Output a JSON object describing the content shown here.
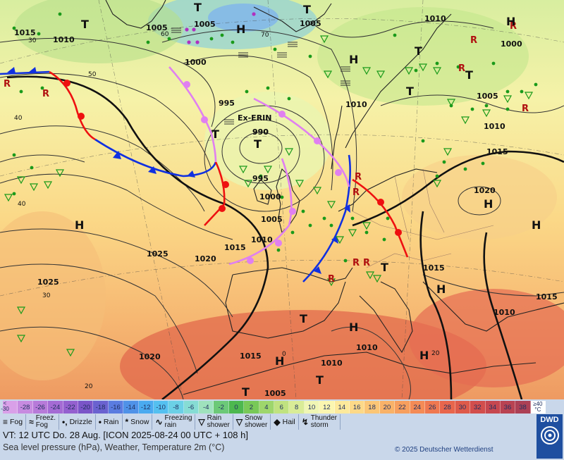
{
  "map": {
    "isobar_labels": [
      "1015",
      "1010",
      "1005",
      "1005",
      "1005",
      "1000",
      "995",
      "990",
      "995",
      "1000",
      "1005",
      "1010",
      "1015",
      "1020",
      "1025",
      "1025",
      "1020",
      "1015",
      "1010",
      "1015",
      "1010",
      "1020",
      "1010",
      "1005",
      "1000",
      "1010",
      "1015",
      "1010",
      "1005",
      "1010",
      "1015"
    ],
    "pressure_centers": [
      "T",
      "T",
      "H",
      "T",
      "H",
      "T",
      "T",
      "T",
      "H",
      "H",
      "H",
      "H",
      "H",
      "T",
      "T",
      "T",
      "T",
      "H",
      "H",
      "H",
      "T"
    ],
    "cyclone_name": "Ex-ERIN",
    "low_center_pressure": "990",
    "minor_labels": [
      "30",
      "50",
      "60",
      "70",
      "40",
      "40",
      "30",
      "20",
      "0",
      "20"
    ]
  },
  "legend": {
    "scale_low_top": "<",
    "scale_low_bottom": "-30",
    "scale_values": [
      "-30",
      "-28",
      "-26",
      "-24",
      "-22",
      "-20",
      "-18",
      "-16",
      "-14",
      "-12",
      "-10",
      "-8",
      "-6",
      "-4",
      "-2",
      "0",
      "2",
      "4",
      "6",
      "8",
      "10",
      "12",
      "14",
      "16",
      "18",
      "20",
      "22",
      "24",
      "26",
      "28",
      "30",
      "32",
      "34",
      "36",
      "38"
    ],
    "scale_colors": [
      "#d9a0e8",
      "#c78be0",
      "#b77ad9",
      "#a46bd4",
      "#9460cf",
      "#7a55c8",
      "#6a62d0",
      "#5a7ce0",
      "#4f92e8",
      "#4aaaf0",
      "#54c0f0",
      "#6bd0e6",
      "#86dcd4",
      "#9fe2bd",
      "#6cc978",
      "#4db84f",
      "#78c957",
      "#9ed66c",
      "#c0e280",
      "#d9ec97",
      "#f0f6b4",
      "#fbf6b0",
      "#fde99b",
      "#fdd988",
      "#fbc676",
      "#f9b268",
      "#f79f5e",
      "#f48b56",
      "#ef7850",
      "#e8664c",
      "#de5a4a",
      "#d24e4c",
      "#c6474f",
      "#b94352",
      "#ac4055"
    ],
    "scale_high_top": "≥40",
    "scale_high_bottom": "°C",
    "weather_types": [
      {
        "sym": "≡",
        "label": "Fog"
      },
      {
        "sym": "≈",
        "label1": "Freez.",
        "label2": "Fog"
      },
      {
        "sym": "•,",
        "label": "Drizzle"
      },
      {
        "sym": "•",
        "label": "Rain"
      },
      {
        "sym": "*",
        "label": "Snow"
      },
      {
        "sym": "∿",
        "label1": "Freezing",
        "label2": "rain"
      },
      {
        "sym": "▽",
        "label1": "Rain",
        "label2": "shower"
      },
      {
        "sym": "▽",
        "label1": "Snow",
        "label2": "shower"
      },
      {
        "sym": "◆",
        "label": "Hail"
      },
      {
        "sym": "↯",
        "label1": "Thunder",
        "label2": "storm"
      }
    ],
    "valid_time": "VT: 12 UTC Do.  28 Aug. [ICON 2025-08-24  00 UTC + 108 h]",
    "subtitle": "Sea level pressure (hPa), Weather, Temperature 2m (°C)",
    "copyright": "© 2025 Deutscher Wetterdienst",
    "logo_text": "DWD"
  },
  "colors": {
    "cold_front": "#1030e0",
    "warm_front": "#ee1010",
    "occluded": "#e080f0",
    "rain": "#1a9a1a"
  }
}
